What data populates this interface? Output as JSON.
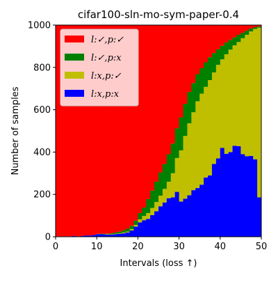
{
  "chart_data": {
    "type": "bar",
    "stacked": true,
    "title": "cifar100-sln-mo-sym-paper-0.4",
    "xlabel": "Intervals (loss  ↑)",
    "ylabel": "Number of samples",
    "xlim": [
      0,
      50
    ],
    "ylim": [
      0,
      1000
    ],
    "xticks": [
      "0",
      "10",
      "20",
      "30",
      "40",
      "50"
    ],
    "yticks": [
      "0",
      "200",
      "400",
      "600",
      "800",
      "1000"
    ],
    "grid": false,
    "legend_position": "top-left",
    "x": [
      0,
      1,
      2,
      3,
      4,
      5,
      6,
      7,
      8,
      9,
      10,
      11,
      12,
      13,
      14,
      15,
      16,
      17,
      18,
      19,
      20,
      21,
      22,
      23,
      24,
      25,
      26,
      27,
      28,
      29,
      30,
      31,
      32,
      33,
      34,
      35,
      36,
      37,
      38,
      39,
      40,
      41,
      42,
      43,
      44,
      45,
      46,
      47,
      48,
      49
    ],
    "series": [
      {
        "name": "l:✓,p:✓",
        "color": "#ff0000",
        "values": [
          998,
          998,
          998,
          998,
          996,
          998,
          996,
          994,
          994,
          991,
          986,
          986,
          986,
          984,
          980,
          976,
          970,
          962,
          948,
          924,
          888,
          862,
          822,
          782,
          740,
          696,
          656,
          610,
          560,
          488,
          436,
          372,
          316,
          274,
          232,
          204,
          176,
          152,
          132,
          114,
          98,
          82,
          70,
          58,
          46,
          36,
          26,
          16,
          10,
          6
        ]
      },
      {
        "name": "l:✓,p:x",
        "color": "#008000",
        "values": [
          0,
          0,
          0,
          0,
          0,
          0,
          0,
          0,
          0,
          0,
          2,
          2,
          2,
          4,
          6,
          8,
          10,
          14,
          16,
          20,
          30,
          40,
          66,
          82,
          96,
          110,
          118,
          130,
          140,
          140,
          156,
          152,
          148,
          138,
          128,
          120,
          116,
          108,
          92,
          74,
          64,
          56,
          46,
          38,
          34,
          26,
          20,
          14,
          8,
          6
        ]
      },
      {
        "name": "l:x,p:✓",
        "color": "#bfbf00",
        "values": [
          0,
          0,
          0,
          0,
          0,
          0,
          0,
          0,
          0,
          0,
          0,
          0,
          2,
          2,
          2,
          2,
          4,
          4,
          6,
          8,
          14,
          20,
          28,
          34,
          44,
          50,
          64,
          78,
          114,
          160,
          242,
          296,
          340,
          368,
          410,
          430,
          428,
          450,
          432,
          442,
          418,
          470,
          484,
          474,
          492,
          548,
          574,
          588,
          616,
          802
        ]
      },
      {
        "name": "l:x,p:x",
        "color": "#0000ff",
        "values": [
          2,
          2,
          2,
          2,
          4,
          2,
          4,
          6,
          6,
          9,
          12,
          12,
          10,
          10,
          12,
          14,
          16,
          20,
          30,
          48,
          68,
          78,
          84,
          102,
          120,
          144,
          162,
          182,
          186,
          212,
          166,
          180,
          196,
          220,
          230,
          246,
          280,
          290,
          344,
          370,
          420,
          392,
          400,
          430,
          428,
          390,
          380,
          382,
          366,
          186
        ]
      }
    ]
  }
}
